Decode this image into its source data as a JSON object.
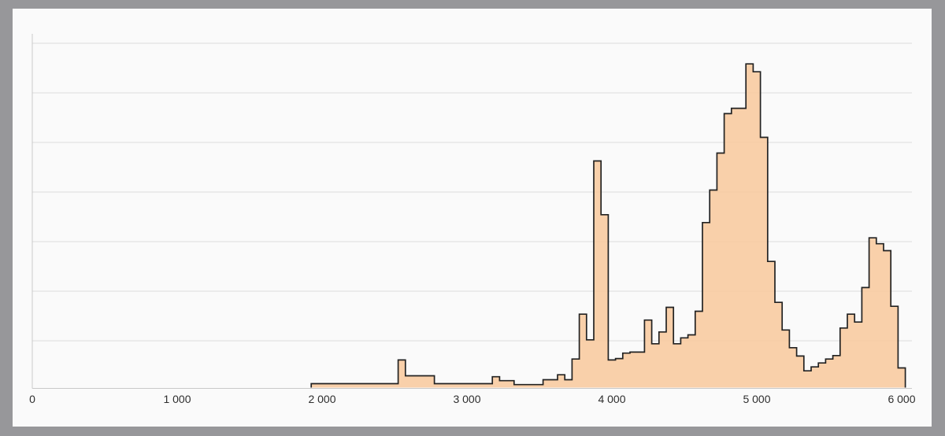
{
  "page": {
    "background_color": "#97979a",
    "card_color": "#fafafa"
  },
  "chart_data": {
    "type": "area",
    "subtype": "step-histogram",
    "title": "",
    "xlabel": "",
    "ylabel": "",
    "x_axis": {
      "min": 0,
      "max": 6000,
      "tick_step": 1000,
      "ticks": [
        {
          "value": 0,
          "label": "0"
        },
        {
          "value": 1000,
          "label": "1 000"
        },
        {
          "value": 2000,
          "label": "2 000"
        },
        {
          "value": 3000,
          "label": "3 000"
        },
        {
          "value": 4000,
          "label": "4 000"
        },
        {
          "value": 5000,
          "label": "5 000"
        },
        {
          "value": 6000,
          "label": "6 000"
        }
      ]
    },
    "y_axis": {
      "labels_visible": false,
      "gridline_count": 7,
      "ylim": [
        0,
        7.2
      ],
      "grid": true
    },
    "legend": null,
    "bin_width": 50,
    "heights_unit": "gridline-intervals",
    "bins": [
      [
        1925,
        0.08
      ],
      [
        1975,
        0.08
      ],
      [
        2025,
        0.08
      ],
      [
        2075,
        0.08
      ],
      [
        2125,
        0.08
      ],
      [
        2175,
        0.08
      ],
      [
        2225,
        0.08
      ],
      [
        2275,
        0.08
      ],
      [
        2325,
        0.08
      ],
      [
        2375,
        0.08
      ],
      [
        2425,
        0.08
      ],
      [
        2475,
        0.08
      ],
      [
        2525,
        0.56
      ],
      [
        2575,
        0.24
      ],
      [
        2625,
        0.24
      ],
      [
        2675,
        0.24
      ],
      [
        2725,
        0.24
      ],
      [
        2775,
        0.08
      ],
      [
        2825,
        0.08
      ],
      [
        2875,
        0.08
      ],
      [
        2925,
        0.08
      ],
      [
        2975,
        0.08
      ],
      [
        3025,
        0.08
      ],
      [
        3075,
        0.08
      ],
      [
        3125,
        0.08
      ],
      [
        3175,
        0.22
      ],
      [
        3225,
        0.14
      ],
      [
        3275,
        0.14
      ],
      [
        3325,
        0.06
      ],
      [
        3375,
        0.06
      ],
      [
        3425,
        0.06
      ],
      [
        3475,
        0.06
      ],
      [
        3525,
        0.16
      ],
      [
        3575,
        0.16
      ],
      [
        3625,
        0.26
      ],
      [
        3675,
        0.16
      ],
      [
        3725,
        0.58
      ],
      [
        3775,
        1.49
      ],
      [
        3825,
        0.97
      ],
      [
        3875,
        4.6
      ],
      [
        3925,
        3.51
      ],
      [
        3975,
        0.56
      ],
      [
        4025,
        0.59
      ],
      [
        4075,
        0.7
      ],
      [
        4125,
        0.72
      ],
      [
        4175,
        0.72
      ],
      [
        4225,
        1.37
      ],
      [
        4275,
        0.89
      ],
      [
        4325,
        1.13
      ],
      [
        4375,
        1.63
      ],
      [
        4425,
        0.89
      ],
      [
        4475,
        1.01
      ],
      [
        4525,
        1.07
      ],
      [
        4575,
        1.55
      ],
      [
        4625,
        3.35
      ],
      [
        4675,
        4.01
      ],
      [
        4725,
        4.76
      ],
      [
        4775,
        5.56
      ],
      [
        4825,
        5.67
      ],
      [
        4875,
        5.67
      ],
      [
        4925,
        6.57
      ],
      [
        4975,
        6.41
      ],
      [
        5025,
        5.08
      ],
      [
        5075,
        2.56
      ],
      [
        5125,
        1.73
      ],
      [
        5175,
        1.17
      ],
      [
        5225,
        0.81
      ],
      [
        5275,
        0.64
      ],
      [
        5325,
        0.34
      ],
      [
        5375,
        0.42
      ],
      [
        5425,
        0.5
      ],
      [
        5475,
        0.58
      ],
      [
        5525,
        0.65
      ],
      [
        5575,
        1.21
      ],
      [
        5625,
        1.49
      ],
      [
        5675,
        1.33
      ],
      [
        5725,
        2.03
      ],
      [
        5775,
        3.04
      ],
      [
        5825,
        2.92
      ],
      [
        5875,
        2.78
      ],
      [
        5925,
        1.65
      ],
      [
        5975,
        0.4
      ]
    ],
    "colors": {
      "fill": "#f8c99e",
      "outline": "#222222",
      "gridline": "#dcdcdc",
      "axis": "#c9c9c9",
      "tick_label": "#2e2e2e"
    }
  }
}
